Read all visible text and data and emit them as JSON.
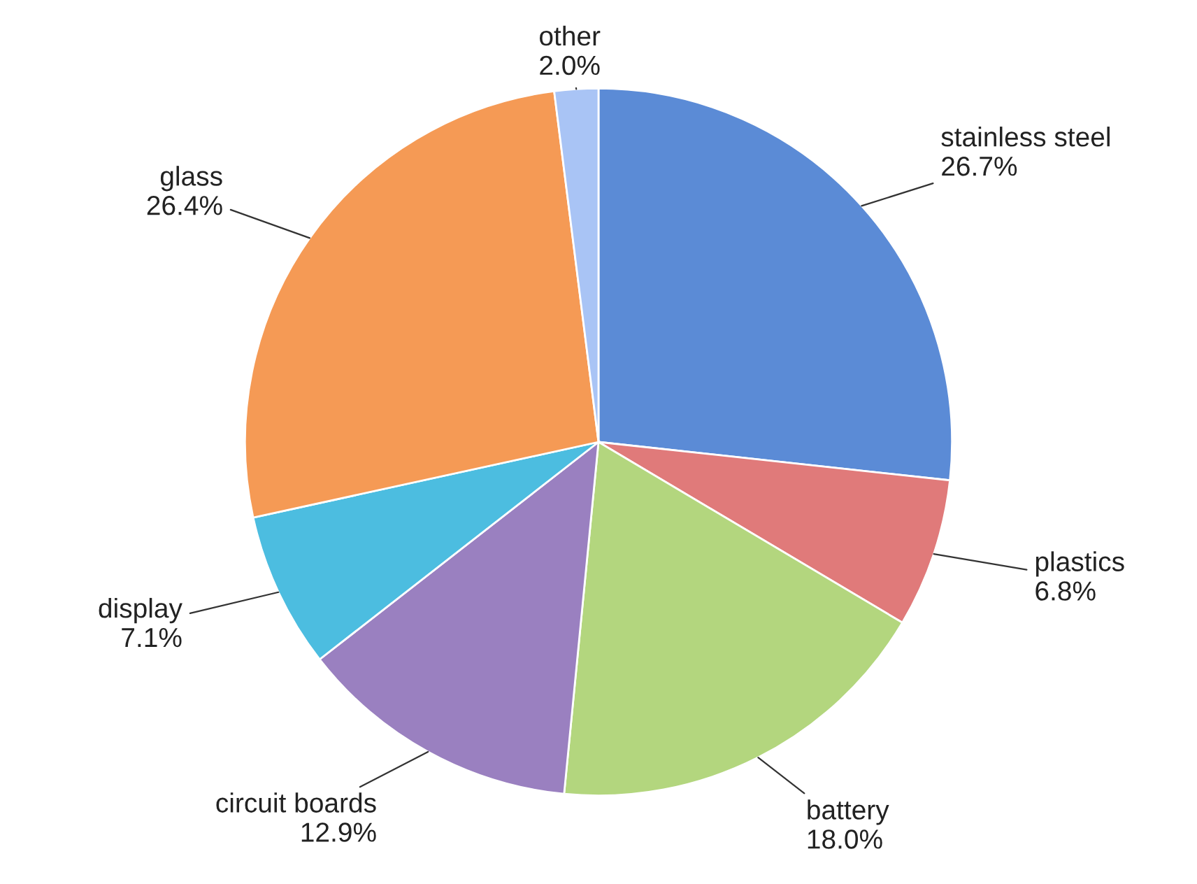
{
  "chart_data": {
    "type": "pie",
    "categories": [
      "stainless steel",
      "plastics",
      "battery",
      "circuit boards",
      "display",
      "glass",
      "other"
    ],
    "values": [
      26.7,
      6.8,
      18.0,
      12.9,
      7.1,
      26.4,
      2.0
    ],
    "value_labels": [
      "26.7%",
      "6.8%",
      "18.0%",
      "12.9%",
      "7.1%",
      "26.4%",
      "2.0%"
    ],
    "colors": [
      "#5b8bd6",
      "#e07a7a",
      "#b3d67e",
      "#9a80c0",
      "#4cbde0",
      "#f59a55",
      "#a9c4f5"
    ],
    "legend": false
  }
}
